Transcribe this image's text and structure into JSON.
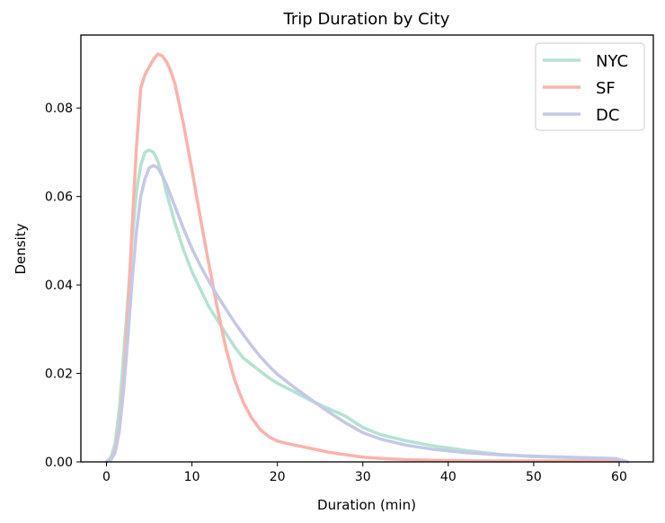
{
  "chart_data": {
    "type": "line",
    "title": "Trip Duration by City",
    "xlabel": "Duration (min)",
    "ylabel": "Density",
    "xlim": [
      -3,
      64
    ],
    "ylim": [
      0,
      0.0965
    ],
    "xticks": [
      0,
      10,
      20,
      30,
      40,
      50,
      60
    ],
    "yticks": [
      0.0,
      0.02,
      0.04,
      0.06,
      0.08
    ],
    "xtick_labels": [
      "0",
      "10",
      "20",
      "30",
      "40",
      "50",
      "60"
    ],
    "ytick_labels": [
      "0.00",
      "0.02",
      "0.04",
      "0.06",
      "0.08"
    ],
    "grid": false,
    "legend_position": "top-right",
    "series": [
      {
        "name": "NYC",
        "color": "#b3e3d1",
        "x": [
          0,
          0.5,
          1,
          1.5,
          2,
          2.5,
          3,
          3.5,
          4,
          4.5,
          5,
          5.5,
          6,
          6.5,
          7,
          8,
          9,
          10,
          11,
          12,
          13,
          14,
          15,
          16,
          17,
          18,
          19,
          20,
          22,
          24,
          26,
          27,
          28,
          30,
          32,
          35,
          38,
          42,
          46,
          50,
          55,
          59.5
        ],
        "values": [
          0.0,
          0.001,
          0.004,
          0.012,
          0.024,
          0.037,
          0.05,
          0.061,
          0.067,
          0.07,
          0.0705,
          0.07,
          0.068,
          0.065,
          0.061,
          0.054,
          0.048,
          0.043,
          0.039,
          0.035,
          0.032,
          0.029,
          0.026,
          0.0235,
          0.022,
          0.0205,
          0.019,
          0.0178,
          0.0158,
          0.0138,
          0.012,
          0.0112,
          0.0103,
          0.0078,
          0.0062,
          0.0048,
          0.0037,
          0.0026,
          0.0017,
          0.0012,
          0.0009,
          0.0007
        ]
      },
      {
        "name": "SF",
        "color": "#fab3ab",
        "x": [
          0,
          0.5,
          1,
          1.5,
          2,
          2.5,
          3,
          3.5,
          3.8,
          4,
          4.5,
          5,
          5.5,
          6,
          6.5,
          7,
          7.5,
          8,
          9,
          10,
          11,
          12,
          13,
          14,
          15,
          16,
          17,
          18,
          19,
          20,
          22,
          24,
          26,
          28,
          30,
          32,
          35,
          40,
          45,
          50,
          55,
          60
        ],
        "values": [
          0.0,
          0.0005,
          0.0025,
          0.008,
          0.018,
          0.034,
          0.053,
          0.071,
          0.079,
          0.0845,
          0.0875,
          0.0893,
          0.091,
          0.0922,
          0.0918,
          0.0905,
          0.0885,
          0.0855,
          0.0765,
          0.066,
          0.055,
          0.0445,
          0.0345,
          0.0255,
          0.0185,
          0.0135,
          0.0099,
          0.0073,
          0.0057,
          0.0047,
          0.0038,
          0.003,
          0.0022,
          0.0016,
          0.0011,
          0.0008,
          0.0005,
          0.0003,
          0.0002,
          0.0002,
          0.0002,
          0.0002
        ]
      },
      {
        "name": "DC",
        "color": "#c5c8e6",
        "x": [
          0,
          0.5,
          1,
          1.5,
          2,
          2.5,
          3,
          3.5,
          4,
          4.5,
          5,
          5.5,
          6,
          6.5,
          7,
          8,
          9,
          10,
          11,
          12,
          13,
          14,
          15,
          16,
          17,
          18,
          19,
          20,
          22,
          24,
          26,
          28,
          30,
          32,
          35,
          38,
          42,
          46,
          50,
          55,
          59.5,
          61
        ],
        "values": [
          0.0,
          0.0005,
          0.002,
          0.007,
          0.016,
          0.028,
          0.041,
          0.052,
          0.06,
          0.064,
          0.0665,
          0.067,
          0.0665,
          0.0648,
          0.0628,
          0.0578,
          0.0528,
          0.0482,
          0.0443,
          0.0408,
          0.0375,
          0.0345,
          0.0315,
          0.0288,
          0.0262,
          0.0238,
          0.0217,
          0.0198,
          0.0168,
          0.014,
          0.0113,
          0.0088,
          0.0066,
          0.0052,
          0.0038,
          0.0029,
          0.0021,
          0.0016,
          0.0013,
          0.001,
          0.0008,
          0.0
        ]
      }
    ]
  }
}
